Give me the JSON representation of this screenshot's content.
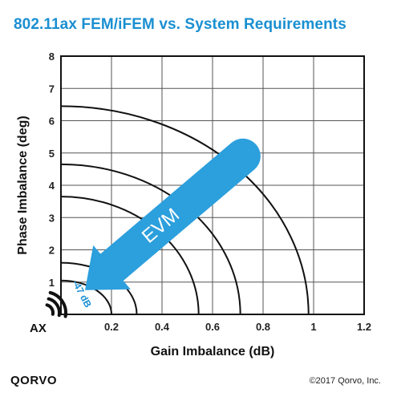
{
  "title": "802.11ax FEM/iFEM vs. System Requirements",
  "brand": "QORVO",
  "copyright": "©2017 Qorvo, Inc.",
  "chart_data": {
    "type": "line",
    "title": "802.11ax FEM/iFEM vs. System Requirements",
    "xlabel": "Gain Imbalance (dB)",
    "ylabel": "Phase Imbalance (deg)",
    "xlim": [
      0,
      1.2
    ],
    "ylim": [
      0,
      8
    ],
    "xticks": [
      "0.2",
      "0.4",
      "0.6",
      "0.8",
      "1",
      "1.2"
    ],
    "yticks": [
      "1",
      "2",
      "3",
      "4",
      "5",
      "6",
      "7",
      "8"
    ],
    "grid": true,
    "series": [
      {
        "x_intercept": 0.2,
        "y_intercept": 1.05
      },
      {
        "x_intercept": 0.3,
        "y_intercept": 1.6
      },
      {
        "x_intercept": 0.545,
        "y_intercept": 3.65
      },
      {
        "x_intercept": 0.71,
        "y_intercept": 4.65
      },
      {
        "x_intercept": 0.98,
        "y_intercept": 6.45
      }
    ],
    "annotations": {
      "arrow_label": "EVM",
      "arrow_from": {
        "x": 0.72,
        "y": 4.9
      },
      "arrow_to": {
        "x": 0.0,
        "y": 1.0
      },
      "ax_label": "AX",
      "ax_level": "-47 dB"
    },
    "colors": {
      "accent": "#1a8fd1",
      "arrow": "#2c9fdd",
      "curve": "#111111",
      "grid": "#555555"
    }
  }
}
